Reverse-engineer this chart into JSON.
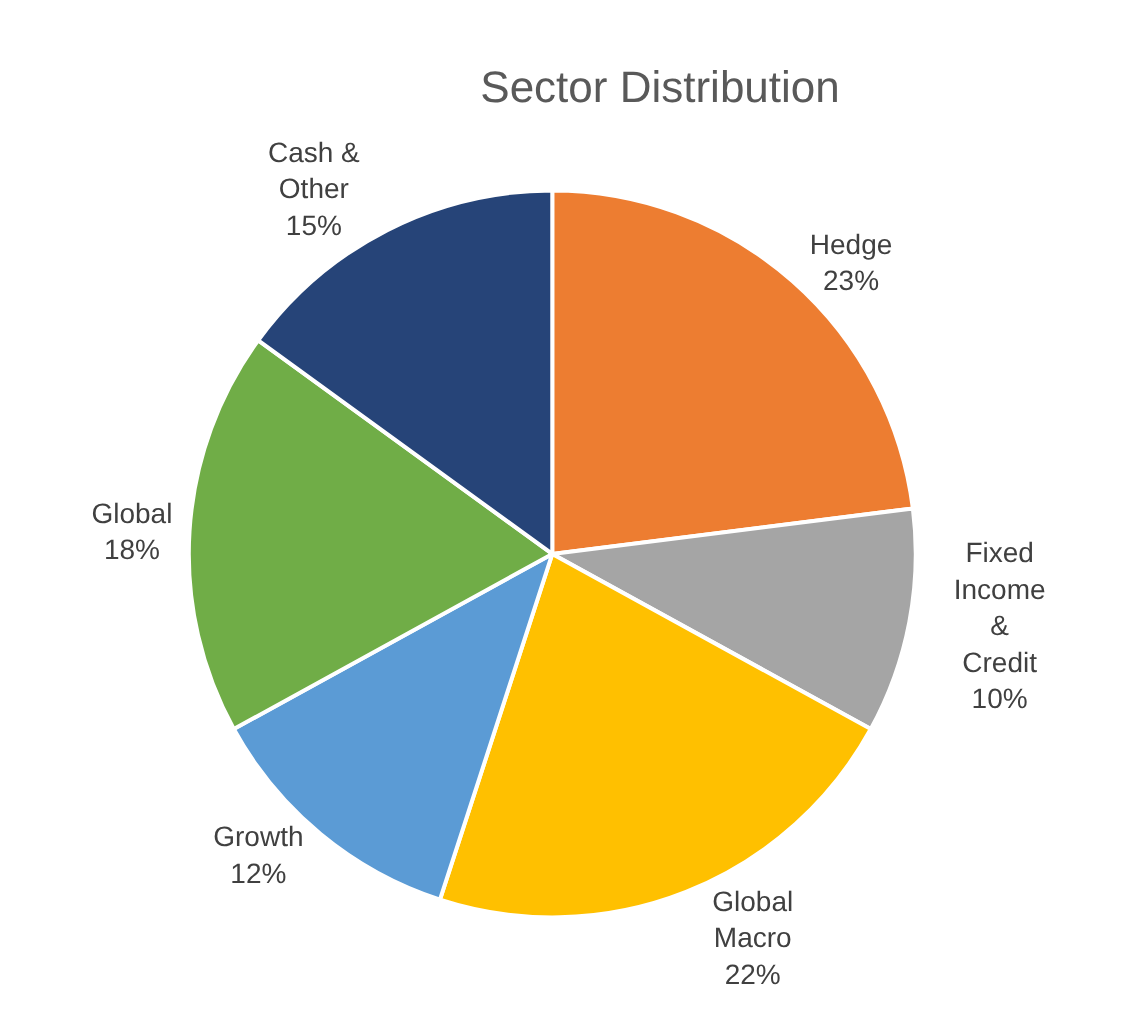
{
  "chart_data": {
    "type": "pie",
    "title": "Sector Distribution",
    "categories": [
      "Hedge",
      "Fixed Income & Credit",
      "Global Macro",
      "Growth",
      "Global",
      "Cash & Other"
    ],
    "values": [
      23,
      10,
      22,
      12,
      18,
      15
    ],
    "value_labels": [
      "23%",
      "10%",
      "22%",
      "12%",
      "18%",
      "15%"
    ],
    "colors": [
      "#ed7d31",
      "#a5a5a5",
      "#ffc000",
      "#5b9bd5",
      "#70ad47",
      "#264478"
    ],
    "legend": false
  }
}
